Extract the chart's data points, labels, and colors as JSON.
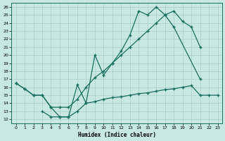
{
  "xlabel": "Humidex (Indice chaleur)",
  "xlim": [
    -0.5,
    23.5
  ],
  "ylim": [
    11.5,
    26.5
  ],
  "xticks": [
    0,
    1,
    2,
    3,
    4,
    5,
    6,
    7,
    8,
    9,
    10,
    11,
    12,
    13,
    14,
    15,
    16,
    17,
    18,
    19,
    20,
    21,
    22,
    23
  ],
  "yticks": [
    12,
    13,
    14,
    15,
    16,
    17,
    18,
    19,
    20,
    21,
    22,
    23,
    24,
    25,
    26
  ],
  "bg_color": "#c8e8e2",
  "grid_color": "#a8cfc8",
  "line_color": "#1a6e60",
  "curve1_x": [
    0,
    1,
    2,
    3,
    4,
    5,
    6,
    7,
    8,
    9,
    10,
    11,
    12,
    13,
    14,
    15,
    16,
    17,
    18,
    21
  ],
  "curve1_y": [
    16.5,
    15.8,
    15.0,
    15.0,
    13.5,
    12.3,
    12.3,
    16.3,
    14.0,
    20.0,
    17.5,
    19.0,
    20.5,
    22.5,
    25.5,
    25.0,
    26.0,
    25.0,
    23.5,
    17.0
  ],
  "curve2_x": [
    0,
    1,
    2,
    3,
    4,
    5,
    6,
    7,
    8,
    9,
    10,
    11,
    12,
    13,
    14,
    15,
    16,
    17,
    18,
    19,
    20,
    21
  ],
  "curve2_y": [
    16.5,
    15.8,
    15.0,
    15.0,
    13.5,
    13.5,
    13.5,
    14.5,
    16.0,
    17.2,
    18.0,
    19.0,
    20.0,
    21.0,
    22.0,
    23.0,
    24.0,
    25.0,
    25.5,
    24.2,
    23.5,
    21.0
  ],
  "curve3_x": [
    3,
    4,
    5,
    6,
    7,
    8,
    9,
    10,
    11,
    12,
    13,
    14,
    15,
    16,
    17,
    18,
    19,
    20,
    21,
    22,
    23
  ],
  "curve3_y": [
    13.0,
    12.3,
    12.3,
    12.3,
    13.0,
    14.0,
    14.2,
    14.5,
    14.7,
    14.8,
    15.0,
    15.2,
    15.3,
    15.5,
    15.7,
    15.8,
    16.0,
    16.2,
    15.0,
    15.0,
    15.0
  ]
}
